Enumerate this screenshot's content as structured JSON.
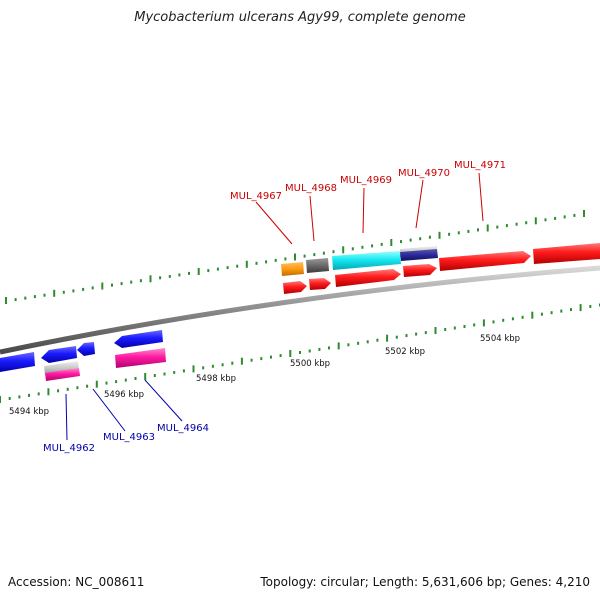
{
  "title": "Mycobacterium ulcerans Agy99, complete genome",
  "footer": {
    "accession": "Accession: NC_008611",
    "summary": "Topology: circular; Length: 5,631,606 bp; Genes: 4,210"
  },
  "colors": {
    "backbone": "#8c8c8c",
    "tick": "#2e8b2e",
    "forward_label": "#cc0000",
    "reverse_label": "#0000aa"
  },
  "chart_data": {
    "type": "genome-map",
    "axis_labels": [
      "5494 kbp",
      "5496 kbp",
      "5498 kbp",
      "5500 kbp",
      "5502 kbp",
      "5504 kbp"
    ],
    "gene_labels": {
      "forward": [
        "MUL_4967",
        "MUL_4968",
        "MUL_4969",
        "MUL_4970",
        "MUL_4971"
      ],
      "reverse": [
        "MUL_4962",
        "MUL_4963",
        "MUL_4964"
      ]
    }
  }
}
